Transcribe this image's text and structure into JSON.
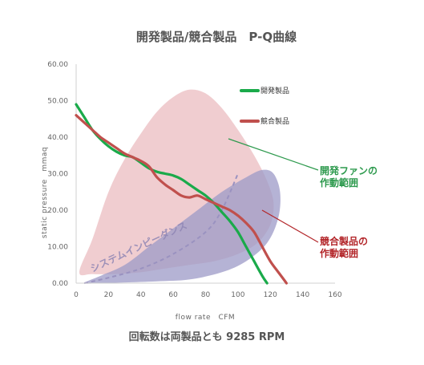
{
  "chart_data": {
    "type": "line",
    "title": "開発製品/競合製品　P-Q曲線",
    "xlabel": "flow rate　CFM",
    "ylabel": "static pressure　mmaq",
    "xlim": [
      0,
      160
    ],
    "ylim": [
      0,
      60
    ],
    "x_ticks": [
      "0",
      "20",
      "40",
      "60",
      "80",
      "100",
      "120",
      "140",
      "160"
    ],
    "y_ticks": [
      "0.00",
      "10.00",
      "20.00",
      "30.00",
      "40.00",
      "50.00",
      "60.00"
    ],
    "grid": false,
    "legend_position": "top-right",
    "series": [
      {
        "name": "開発製品",
        "color": "#1aaa4a",
        "points": [
          [
            0,
            49
          ],
          [
            5,
            45.5
          ],
          [
            10,
            42
          ],
          [
            15,
            39.5
          ],
          [
            20,
            37.5
          ],
          [
            25,
            36
          ],
          [
            30,
            35
          ],
          [
            35,
            34.5
          ],
          [
            40,
            33
          ],
          [
            45,
            31.5
          ],
          [
            50,
            30.5
          ],
          [
            55,
            30
          ],
          [
            60,
            29.5
          ],
          [
            65,
            28.5
          ],
          [
            70,
            27
          ],
          [
            75,
            25.5
          ],
          [
            80,
            24
          ],
          [
            85,
            22
          ],
          [
            90,
            19.5
          ],
          [
            95,
            17
          ],
          [
            100,
            14
          ],
          [
            105,
            10
          ],
          [
            110,
            6
          ],
          [
            115,
            2
          ],
          [
            118,
            0
          ]
        ]
      },
      {
        "name": "競合製品",
        "color": "#c0504d",
        "points": [
          [
            0,
            46
          ],
          [
            5,
            44
          ],
          [
            10,
            42
          ],
          [
            15,
            40
          ],
          [
            20,
            38.5
          ],
          [
            25,
            37
          ],
          [
            30,
            35.5
          ],
          [
            35,
            34.5
          ],
          [
            40,
            33.5
          ],
          [
            45,
            32
          ],
          [
            50,
            29
          ],
          [
            55,
            27
          ],
          [
            60,
            25.5
          ],
          [
            65,
            24
          ],
          [
            70,
            23.5
          ],
          [
            75,
            24
          ],
          [
            80,
            23
          ],
          [
            85,
            22
          ],
          [
            90,
            21
          ],
          [
            95,
            20
          ],
          [
            100,
            18.5
          ],
          [
            105,
            16.5
          ],
          [
            110,
            14
          ],
          [
            115,
            10
          ],
          [
            120,
            6
          ],
          [
            125,
            3
          ],
          [
            130,
            0
          ]
        ]
      }
    ],
    "system_impedance": {
      "label": "システムインピーダンス",
      "color": "#9a92c0",
      "points": [
        [
          5,
          0
        ],
        [
          20,
          1.5
        ],
        [
          40,
          4
        ],
        [
          60,
          8
        ],
        [
          80,
          14
        ],
        [
          90,
          20
        ],
        [
          100,
          30
        ]
      ]
    },
    "regions": [
      {
        "name": "開発ファンの作動範囲",
        "color": "#e9b8bc",
        "outline": [
          [
            2,
            3
          ],
          [
            10,
            12
          ],
          [
            20,
            25
          ],
          [
            30,
            34
          ],
          [
            40,
            41
          ],
          [
            50,
            47
          ],
          [
            60,
            51
          ],
          [
            70,
            53
          ],
          [
            80,
            52
          ],
          [
            90,
            48
          ],
          [
            100,
            42
          ],
          [
            110,
            35
          ],
          [
            118,
            28
          ],
          [
            122,
            22
          ],
          [
            120,
            16
          ],
          [
            112,
            11
          ],
          [
            100,
            8
          ],
          [
            85,
            6
          ],
          [
            70,
            5
          ],
          [
            55,
            4
          ],
          [
            40,
            3
          ],
          [
            25,
            2.5
          ],
          [
            10,
            2.5
          ],
          [
            2,
            3
          ]
        ]
      },
      {
        "name": "競合製品の作動範囲",
        "color": "#9c99c7",
        "outline": [
          [
            5,
            0
          ],
          [
            15,
            2
          ],
          [
            30,
            5
          ],
          [
            45,
            10
          ],
          [
            60,
            15
          ],
          [
            75,
            20
          ],
          [
            90,
            25
          ],
          [
            105,
            29
          ],
          [
            115,
            31
          ],
          [
            122,
            30
          ],
          [
            126,
            25
          ],
          [
            125,
            18
          ],
          [
            118,
            11
          ],
          [
            105,
            6
          ],
          [
            90,
            3
          ],
          [
            70,
            1
          ],
          [
            50,
            0.5
          ],
          [
            30,
            0.2
          ],
          [
            15,
            0
          ],
          [
            5,
            0
          ]
        ]
      }
    ],
    "annotations": [
      {
        "text_lines": [
          "開発ファンの",
          "作動範囲"
        ],
        "color": "#2e9a4e"
      },
      {
        "text_lines": [
          "競合製品の",
          "作動範囲"
        ],
        "color": "#b3262a"
      }
    ],
    "footer": "回転数は両製品とも 9285 RPM"
  }
}
